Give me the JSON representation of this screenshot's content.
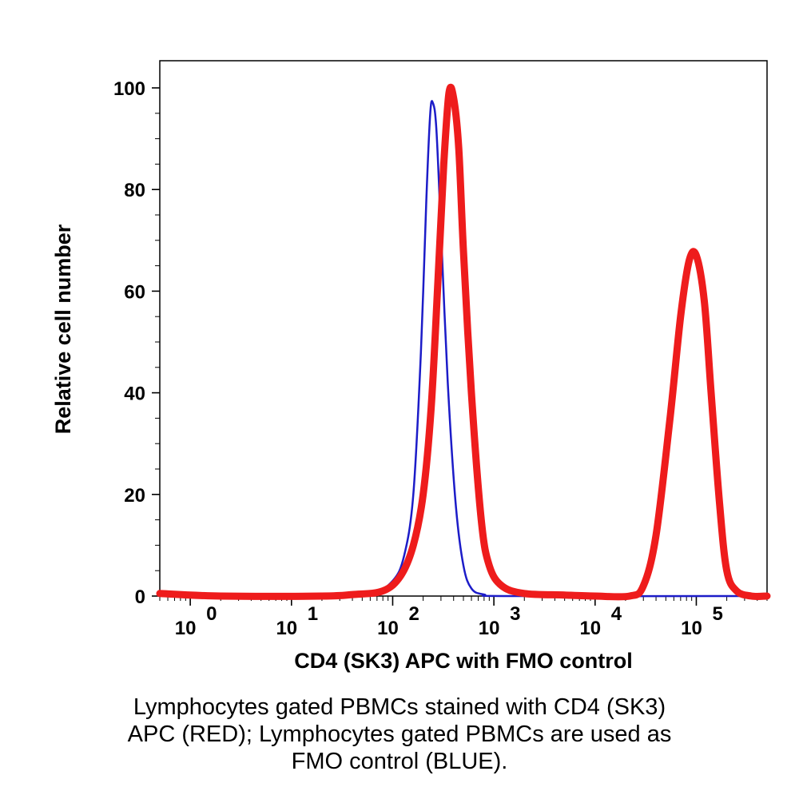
{
  "chart_data": {
    "type": "line",
    "xlabel": "CD4 (SK3) APC with FMO control",
    "ylabel": "Relative cell number",
    "x_scale": "log",
    "xlim": [
      0.5,
      500000
    ],
    "ylim": [
      0,
      100
    ],
    "yticks": [
      "0",
      "20",
      "40",
      "60",
      "80",
      "100"
    ],
    "xticks": [
      {
        "base": "10",
        "exp": "0"
      },
      {
        "base": "10",
        "exp": "1"
      },
      {
        "base": "10",
        "exp": "2"
      },
      {
        "base": "10",
        "exp": "3"
      },
      {
        "base": "10",
        "exp": "4"
      },
      {
        "base": "10",
        "exp": "5"
      }
    ],
    "series": [
      {
        "color": "#1c1cc8",
        "points": [
          [
            0.5,
            0.5
          ],
          [
            2,
            0
          ],
          [
            20,
            0
          ],
          [
            60,
            0.5
          ],
          [
            100,
            3
          ],
          [
            130,
            8
          ],
          [
            160,
            20
          ],
          [
            190,
            48
          ],
          [
            215,
            78
          ],
          [
            235,
            95
          ],
          [
            250,
            97
          ],
          [
            270,
            92
          ],
          [
            300,
            72
          ],
          [
            350,
            42
          ],
          [
            420,
            18
          ],
          [
            500,
            6
          ],
          [
            600,
            1.5
          ],
          [
            800,
            0.3
          ],
          [
            1500,
            0
          ],
          [
            500000,
            0
          ]
        ]
      },
      {
        "color": "#ee1c1c",
        "points": [
          [
            0.5,
            0.5
          ],
          [
            2,
            0
          ],
          [
            20,
            0
          ],
          [
            40,
            0.3
          ],
          [
            80,
            1
          ],
          [
            120,
            4
          ],
          [
            160,
            10
          ],
          [
            200,
            20
          ],
          [
            240,
            37
          ],
          [
            280,
            62
          ],
          [
            320,
            85
          ],
          [
            360,
            99
          ],
          [
            400,
            98
          ],
          [
            450,
            88
          ],
          [
            500,
            68
          ],
          [
            600,
            40
          ],
          [
            750,
            15
          ],
          [
            900,
            6
          ],
          [
            1200,
            2
          ],
          [
            2000,
            0.5
          ],
          [
            5000,
            0.2
          ],
          [
            10000,
            0
          ],
          [
            22000,
            0
          ],
          [
            30000,
            2
          ],
          [
            40000,
            12
          ],
          [
            55000,
            35
          ],
          [
            70000,
            55
          ],
          [
            85000,
            66
          ],
          [
            100000,
            67
          ],
          [
            120000,
            58
          ],
          [
            140000,
            40
          ],
          [
            170000,
            18
          ],
          [
            200000,
            5
          ],
          [
            250000,
            1
          ],
          [
            350000,
            0
          ],
          [
            500000,
            0
          ]
        ]
      }
    ]
  },
  "caption_lines": [
    "Lymphocytes gated PBMCs stained with CD4 (SK3)",
    "APC (RED); Lymphocytes gated PBMCs are used as",
    "FMO control (BLUE)."
  ]
}
